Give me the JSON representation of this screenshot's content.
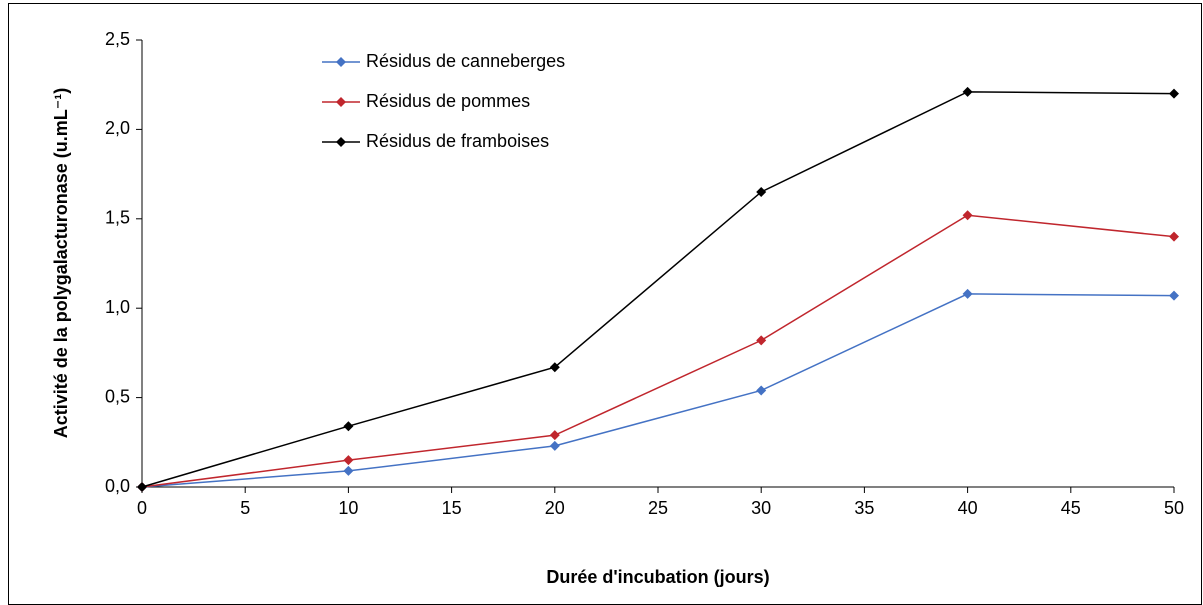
{
  "chart_data": {
    "type": "line",
    "x": [
      0,
      10,
      20,
      30,
      40,
      50
    ],
    "series": [
      {
        "name": "Résidus de canneberges",
        "color": "#4472c4",
        "values": [
          0,
          0.09,
          0.23,
          0.54,
          1.08,
          1.07
        ]
      },
      {
        "name": "Résidus de pommes",
        "color": "#c0262d",
        "values": [
          0,
          0.15,
          0.29,
          0.82,
          1.52,
          1.4
        ]
      },
      {
        "name": "Résidus de framboises",
        "color": "#000000",
        "values": [
          0,
          0.34,
          0.67,
          1.65,
          2.21,
          2.2
        ]
      }
    ],
    "xlabel": "Durée d'incubation (jours)",
    "ylabel": "Activité de la polygalacturonase (u.mL⁻¹)",
    "xlim": [
      0,
      50
    ],
    "xticks": [
      0,
      5,
      10,
      15,
      20,
      25,
      30,
      35,
      40,
      45,
      50
    ],
    "ylim": [
      0,
      2.5
    ],
    "yticks": [
      {
        "value": 0,
        "label": "0,0"
      },
      {
        "value": 0.5,
        "label": "0,5"
      },
      {
        "value": 1,
        "label": "1,0"
      },
      {
        "value": 1.5,
        "label": "1,5"
      },
      {
        "value": 2,
        "label": "2,0"
      },
      {
        "value": 2.5,
        "label": "2,5"
      }
    ],
    "legend": "upper left"
  }
}
